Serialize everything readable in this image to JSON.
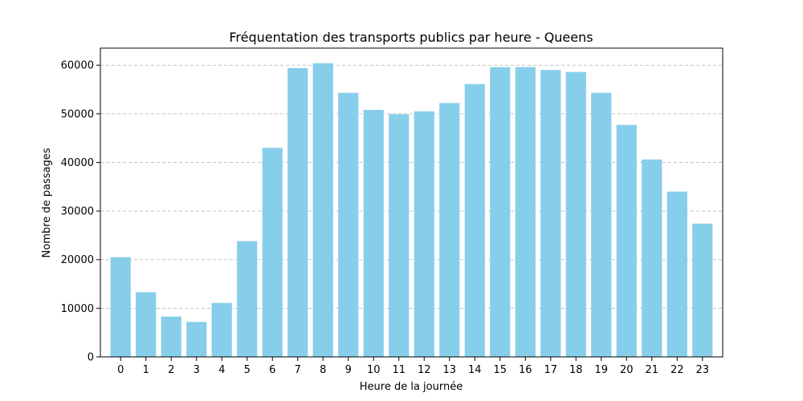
{
  "chart_data": {
    "type": "bar",
    "title": "Fréquentation des transports publics par heure - Queens",
    "xlabel": "Heure de la journée",
    "ylabel": "Nombre de passages",
    "categories": [
      "0",
      "1",
      "2",
      "3",
      "4",
      "5",
      "6",
      "7",
      "8",
      "9",
      "10",
      "11",
      "12",
      "13",
      "14",
      "15",
      "16",
      "17",
      "18",
      "19",
      "20",
      "21",
      "22",
      "23"
    ],
    "values": [
      20500,
      13300,
      8300,
      7200,
      11100,
      23800,
      43000,
      59400,
      60400,
      54300,
      50800,
      49900,
      50500,
      52200,
      56100,
      59600,
      59600,
      59000,
      58600,
      54300,
      47700,
      40600,
      34000,
      27400
    ],
    "ylim": [
      0,
      63500
    ],
    "yticks": [
      0,
      10000,
      20000,
      30000,
      40000,
      50000,
      60000
    ],
    "grid": "y-dashed",
    "bar_color": "#87ceeb"
  }
}
